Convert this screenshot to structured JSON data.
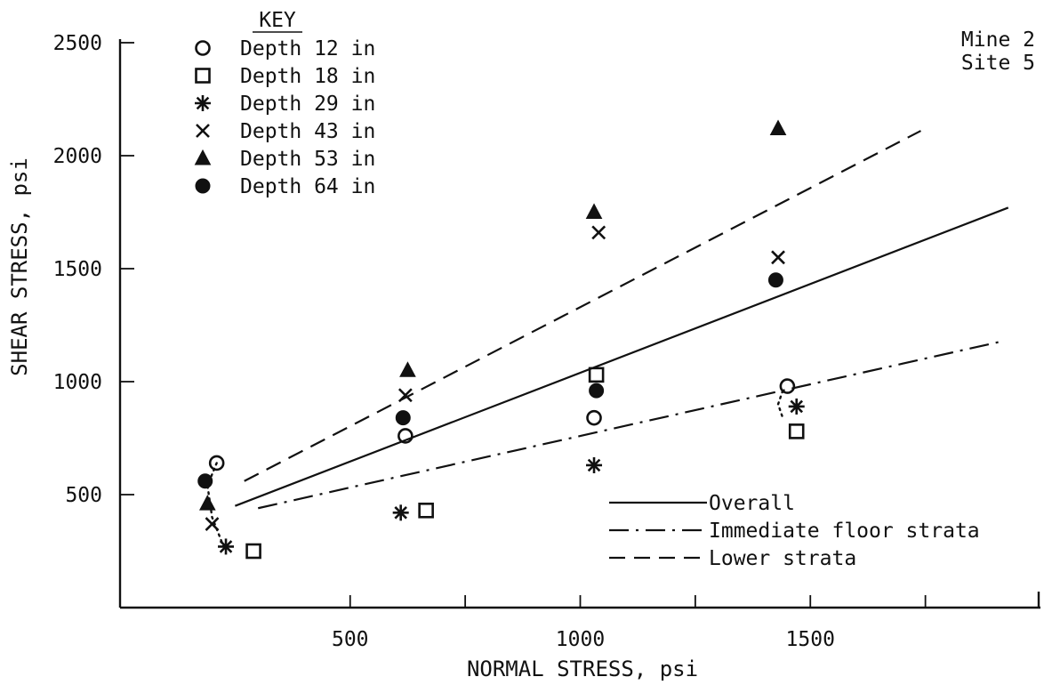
{
  "chart_data": {
    "type": "scatter",
    "title": "",
    "xlabel": "NORMAL STRESS, psi",
    "ylabel": "SHEAR STRESS, psi",
    "xlim": [
      0,
      2000
    ],
    "ylim": [
      0,
      2500
    ],
    "x_ticks_labeled": [
      500,
      1000,
      1500
    ],
    "x_ticks_minor": [
      750,
      1250,
      1750
    ],
    "y_ticks_labeled": [
      500,
      1000,
      1500,
      2000,
      2500
    ],
    "annotation": [
      "Mine 2",
      "Site 5"
    ],
    "key_title": "KEY",
    "series": [
      {
        "name": "Depth 12 in",
        "marker": "open-circle",
        "points": [
          [
            210,
            640
          ],
          [
            620,
            760
          ],
          [
            1030,
            840
          ],
          [
            1450,
            980
          ]
        ]
      },
      {
        "name": "Depth 18 in",
        "marker": "open-square",
        "points": [
          [
            290,
            250
          ],
          [
            665,
            430
          ],
          [
            1035,
            1030
          ],
          [
            1470,
            780
          ]
        ]
      },
      {
        "name": "Depth 29 in",
        "marker": "asterisk",
        "points": [
          [
            230,
            270
          ],
          [
            610,
            420
          ],
          [
            1030,
            630
          ],
          [
            1470,
            890
          ]
        ]
      },
      {
        "name": "Depth 43 in",
        "marker": "x",
        "points": [
          [
            200,
            370
          ],
          [
            620,
            940
          ],
          [
            1040,
            1660
          ],
          [
            1430,
            1550
          ]
        ]
      },
      {
        "name": "Depth 53 in",
        "marker": "filled-triangle",
        "points": [
          [
            190,
            460
          ],
          [
            625,
            1050
          ],
          [
            1030,
            1750
          ],
          [
            1430,
            2120
          ]
        ]
      },
      {
        "name": "Depth 64 in",
        "marker": "filled-circle",
        "points": [
          [
            185,
            560
          ],
          [
            615,
            840
          ],
          [
            1035,
            960
          ],
          [
            1425,
            1450
          ]
        ]
      }
    ],
    "lines": [
      {
        "name": "Overall",
        "style": "solid",
        "points": [
          [
            250,
            450
          ],
          [
            1930,
            1770
          ]
        ]
      },
      {
        "name": "Immediate floor strata",
        "style": "dash-dot",
        "points": [
          [
            300,
            440
          ],
          [
            1920,
            1180
          ]
        ]
      },
      {
        "name": "Lower strata",
        "style": "dashed",
        "points": [
          [
            270,
            560
          ],
          [
            1740,
            2110
          ]
        ]
      }
    ],
    "dotted_links": [
      {
        "points": [
          [
            210,
            640
          ],
          [
            190,
            540
          ],
          [
            200,
            400
          ],
          [
            225,
            270
          ]
        ]
      },
      {
        "points": [
          [
            1440,
            960
          ],
          [
            1430,
            900
          ],
          [
            1440,
            840
          ]
        ]
      }
    ],
    "grid": false,
    "legend_placement": "bottom-right (lines), top-left (markers)"
  }
}
